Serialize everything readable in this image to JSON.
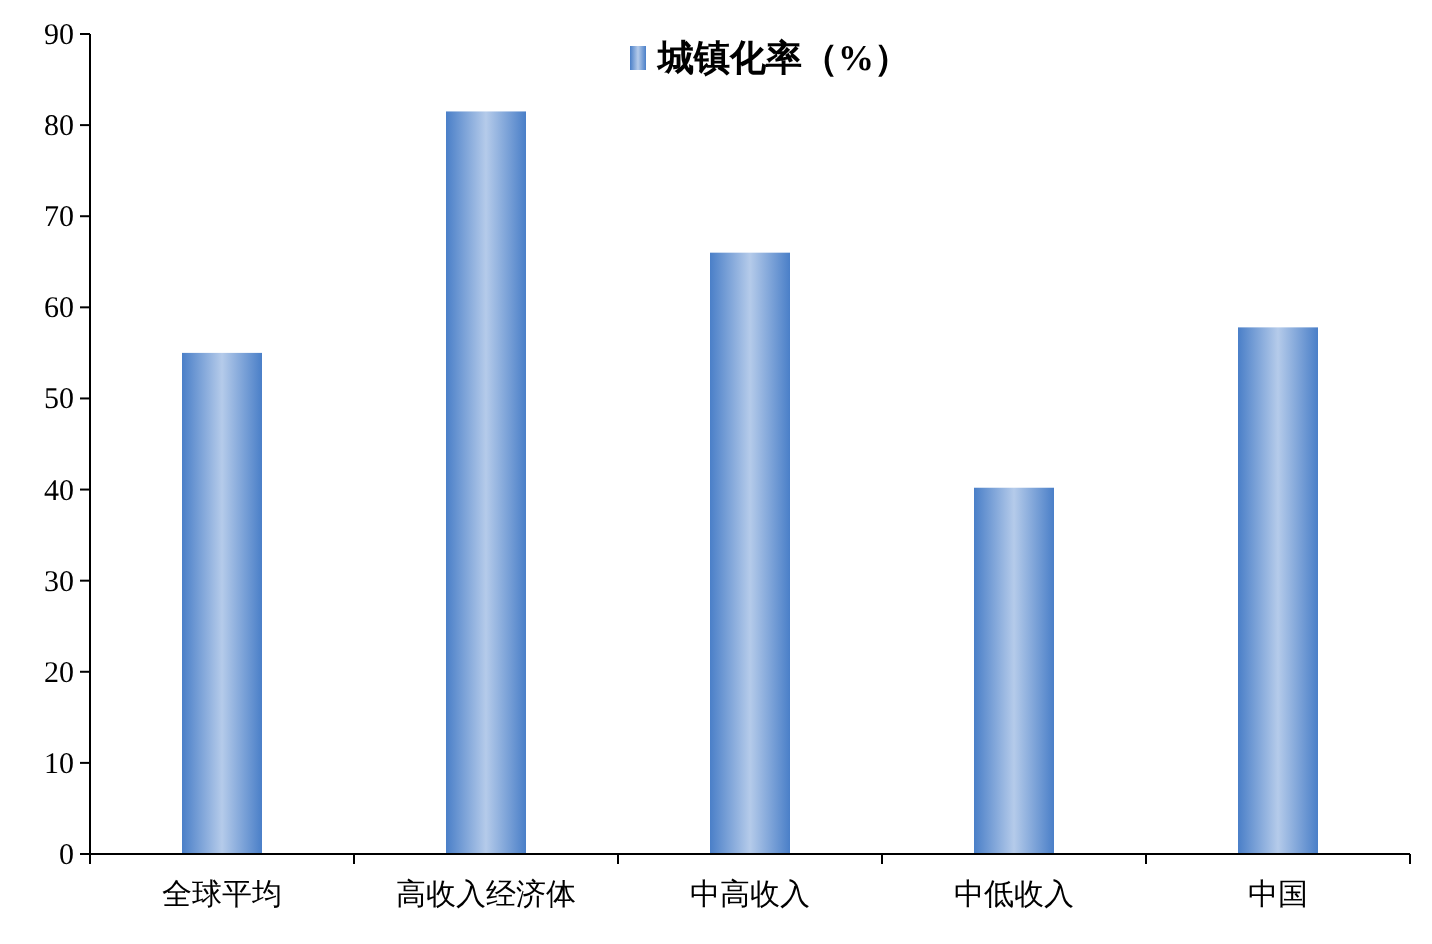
{
  "chart_data": {
    "type": "bar",
    "categories": [
      "全球平均",
      "高收入经济体",
      "中高收入",
      "中低收入",
      "中国"
    ],
    "series": [
      {
        "name": "城镇化率（%）",
        "color": "#4a7fc8",
        "values": [
          55,
          81.5,
          66,
          40.2,
          57.8
        ]
      }
    ],
    "ylim": [
      0,
      90
    ],
    "yticks": [
      0,
      10,
      20,
      30,
      40,
      50,
      60,
      70,
      80,
      90
    ],
    "grid": false,
    "legend": "top"
  }
}
